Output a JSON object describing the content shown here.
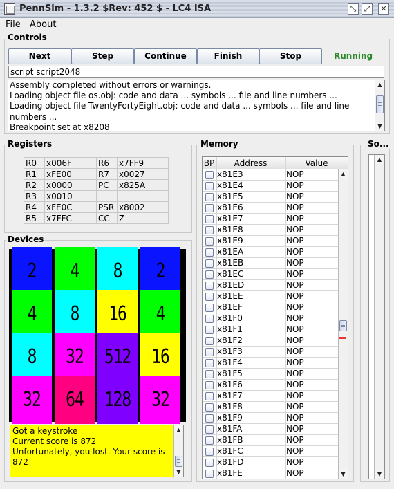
{
  "window": {
    "title": "PennSim - 1.3.2 $Rev: 452 $ - LC4 ISA",
    "buttons": [
      "⤡",
      "⤢",
      "✕"
    ]
  },
  "menu": {
    "items": [
      "File",
      "About"
    ]
  },
  "controls": {
    "title": "Controls",
    "buttons": [
      "Next",
      "Step",
      "Continue",
      "Finish",
      "Stop"
    ],
    "status": "Running",
    "status_color": "#2a8a2a",
    "script_input_value": "script script2048",
    "console_lines": [
      "Assembly completed without errors or warnings.",
      "Loading object file os.obj: code and data ...  symbols ...  file and line numbers ...",
      "Loading object file TwentyFortyEight.obj: code and data ...  symbols ...  file and line",
      "numbers ...",
      "Breakpoint set at x8208"
    ]
  },
  "registers": {
    "title": "Registers",
    "rows": [
      [
        "R0",
        "x006F",
        "R6",
        "x7FF9"
      ],
      [
        "R1",
        "xFE00",
        "R7",
        "x0027"
      ],
      [
        "R2",
        "x0000",
        "PC",
        "x825A"
      ],
      [
        "R3",
        "x0010",
        "",
        ""
      ],
      [
        "R4",
        "xFE0C",
        "PSR",
        "x8002"
      ],
      [
        "R5",
        "x7FFC",
        "CC",
        "Z"
      ]
    ]
  },
  "devices": {
    "title": "Devices",
    "board": [
      [
        {
          "v": "2",
          "bg": "#0a14ff"
        },
        {
          "v": "4",
          "bg": "#00ff00"
        },
        {
          "v": "8",
          "bg": "#00ffff"
        },
        {
          "v": "2",
          "bg": "#0a14ff"
        }
      ],
      [
        {
          "v": "4",
          "bg": "#00ff00"
        },
        {
          "v": "8",
          "bg": "#00ffff"
        },
        {
          "v": "16",
          "bg": "#ffff00"
        },
        {
          "v": "4",
          "bg": "#00ff00"
        }
      ],
      [
        {
          "v": "8",
          "bg": "#00ffff"
        },
        {
          "v": "32",
          "bg": "#ff00ff"
        },
        {
          "v": "512",
          "bg": "#8000ff"
        },
        {
          "v": "16",
          "bg": "#ffff00"
        }
      ],
      [
        {
          "v": "32",
          "bg": "#ff00ff"
        },
        {
          "v": "64",
          "bg": "#ff0080"
        },
        {
          "v": "128",
          "bg": "#8000ff"
        },
        {
          "v": "32",
          "bg": "#ff00ff"
        }
      ]
    ],
    "console_lines": [
      "Got a keystroke",
      "Current score is 872",
      "Unfortunately, you lost. Your score is",
      "872"
    ]
  },
  "memory": {
    "title": "Memory",
    "headers": [
      "BP",
      "Address",
      "Value"
    ],
    "rows": [
      [
        "x81E3",
        "NOP"
      ],
      [
        "x81E4",
        "NOP"
      ],
      [
        "x81E5",
        "NOP"
      ],
      [
        "x81E6",
        "NOP"
      ],
      [
        "x81E7",
        "NOP"
      ],
      [
        "x81E8",
        "NOP"
      ],
      [
        "x81E9",
        "NOP"
      ],
      [
        "x81EA",
        "NOP"
      ],
      [
        "x81EB",
        "NOP"
      ],
      [
        "x81EC",
        "NOP"
      ],
      [
        "x81ED",
        "NOP"
      ],
      [
        "x81EE",
        "NOP"
      ],
      [
        "x81EF",
        "NOP"
      ],
      [
        "x81F0",
        "NOP"
      ],
      [
        "x81F1",
        "NOP"
      ],
      [
        "x81F2",
        "NOP"
      ],
      [
        "x81F3",
        "NOP"
      ],
      [
        "x81F4",
        "NOP"
      ],
      [
        "x81F5",
        "NOP"
      ],
      [
        "x81F6",
        "NOP"
      ],
      [
        "x81F7",
        "NOP"
      ],
      [
        "x81F8",
        "NOP"
      ],
      [
        "x81F9",
        "NOP"
      ],
      [
        "x81FA",
        "NOP"
      ],
      [
        "x81FB",
        "NOP"
      ],
      [
        "x81FC",
        "NOP"
      ],
      [
        "x81FD",
        "NOP"
      ],
      [
        "x81FE",
        "NOP"
      ]
    ]
  },
  "source": {
    "title": "So..."
  }
}
